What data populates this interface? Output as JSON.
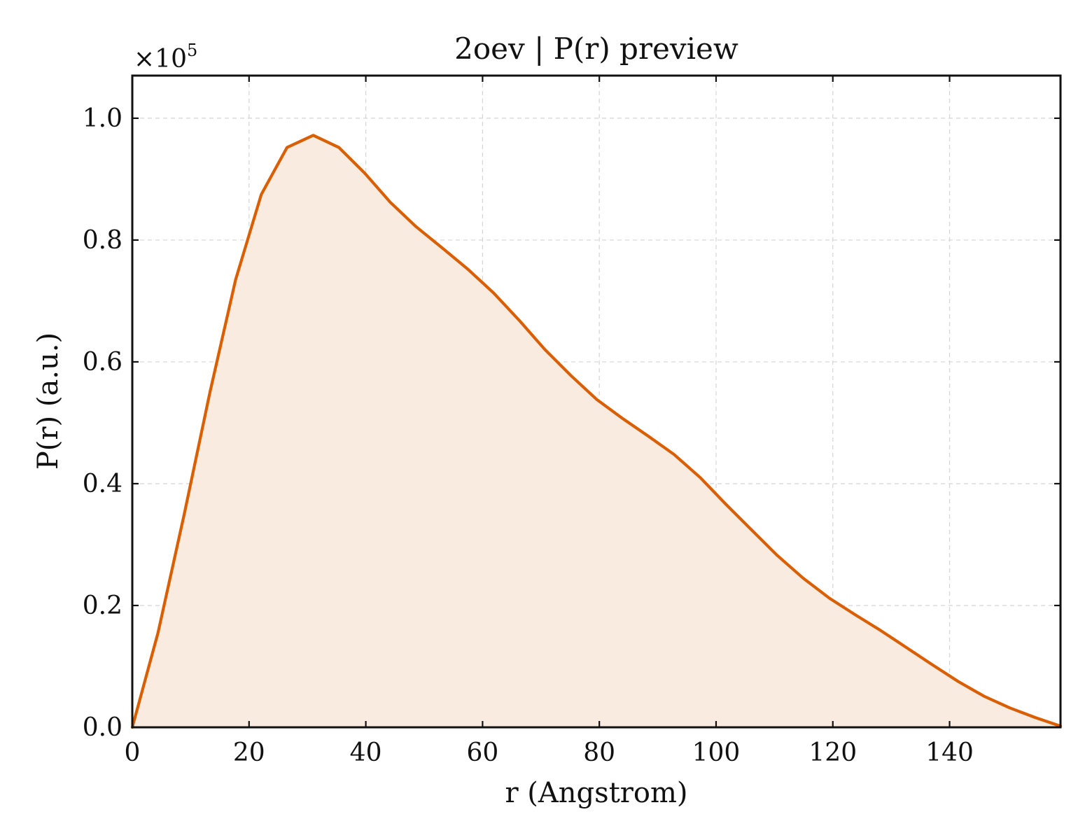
{
  "chart_data": {
    "type": "area",
    "title": "2oev | P(r) preview",
    "xlabel": "r (Angstrom)",
    "ylabel": "P(r) (a.u.)",
    "y_exponent_prefix": "×10",
    "y_exponent_power": "5",
    "y_scale": 100000,
    "xlim": [
      0,
      159
    ],
    "ylim": [
      0,
      107000
    ],
    "x_ticks": [
      0,
      20,
      40,
      60,
      80,
      100,
      120,
      140
    ],
    "x_tick_labels": [
      "0",
      "20",
      "40",
      "60",
      "80",
      "100",
      "120",
      "140"
    ],
    "y_ticks": [
      0,
      20000,
      40000,
      60000,
      80000,
      100000
    ],
    "y_tick_labels": [
      "0.0",
      "0.2",
      "0.4",
      "0.6",
      "0.8",
      "1.0"
    ],
    "grid": true,
    "line_color": "#d95f02",
    "fill_color": "#faebe0",
    "series": [
      {
        "x": [
          0,
          4.4,
          8.9,
          13.3,
          17.7,
          22.1,
          26.5,
          31.0,
          35.4,
          39.8,
          44.2,
          48.6,
          53.1,
          57.5,
          61.9,
          66.3,
          70.7,
          75.2,
          79.6,
          84.0,
          88.4,
          92.8,
          97.3,
          101.7,
          106.1,
          110.5,
          114.9,
          119.4,
          123.8,
          128.2,
          132.6,
          137.0,
          141.5,
          145.9,
          150.3,
          154.7,
          159.0
        ],
        "y": [
          0,
          15500,
          35000,
          55000,
          73500,
          87500,
          95200,
          97200,
          95200,
          91000,
          86200,
          82200,
          78700,
          75200,
          71300,
          66800,
          62000,
          57700,
          53800,
          50700,
          47800,
          44800,
          41000,
          36600,
          32400,
          28200,
          24500,
          21200,
          18500,
          15900,
          13100,
          10300,
          7500,
          5100,
          3200,
          1600,
          200
        ]
      }
    ]
  }
}
